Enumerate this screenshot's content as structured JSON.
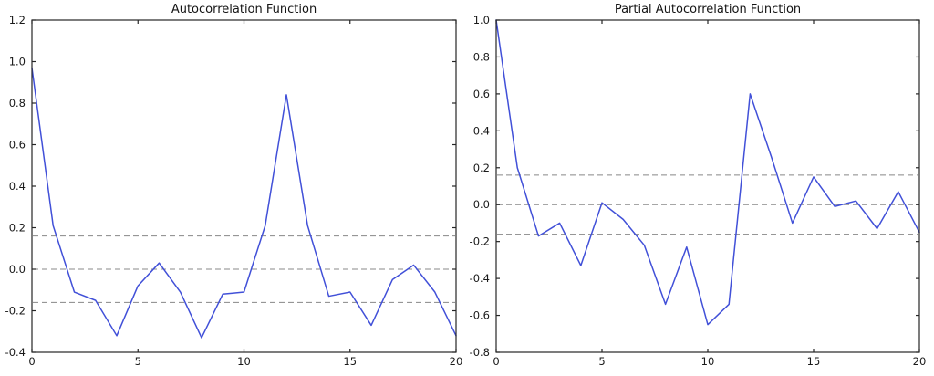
{
  "figure": {
    "background_color": "#ffffff",
    "axis_color": "#262626",
    "tick_label_color": "#1a1a1a"
  },
  "chart_data": [
    {
      "type": "line",
      "title": "Autocorrelation Function",
      "xlabel": "",
      "ylabel": "",
      "x": [
        0,
        1,
        2,
        3,
        4,
        5,
        6,
        7,
        8,
        9,
        10,
        11,
        12,
        13,
        14,
        15,
        16,
        17,
        18,
        19,
        20
      ],
      "values": [
        0.97,
        0.21,
        -0.11,
        -0.15,
        -0.32,
        -0.08,
        0.03,
        -0.11,
        -0.33,
        -0.12,
        -0.11,
        0.21,
        0.84,
        0.21,
        -0.13,
        -0.11,
        -0.27,
        -0.05,
        0.02,
        -0.11,
        -0.32
      ],
      "xlim": [
        0,
        20
      ],
      "ylim": [
        -0.4,
        1.2
      ],
      "xticks": [
        0,
        5,
        10,
        15,
        20
      ],
      "yticks": [
        1.2,
        1.0,
        0.8,
        0.6,
        0.4,
        0.2,
        0.0,
        -0.2,
        -0.4
      ],
      "reference_lines": [
        0.16,
        0.0,
        -0.16
      ],
      "reference_line_style": "dashed",
      "reference_line_color": "#888888",
      "line_color": "#4150d8",
      "grid": "off",
      "legend": "none"
    },
    {
      "type": "line",
      "title": "Partial Autocorrelation Function",
      "xlabel": "",
      "ylabel": "",
      "x": [
        0,
        1,
        2,
        3,
        4,
        5,
        6,
        7,
        8,
        9,
        10,
        11,
        12,
        13,
        14,
        15,
        16,
        17,
        18,
        19,
        20
      ],
      "values": [
        1.0,
        0.2,
        -0.17,
        -0.1,
        -0.33,
        0.01,
        -0.08,
        -0.22,
        -0.54,
        -0.23,
        -0.65,
        -0.54,
        0.6,
        0.26,
        -0.1,
        0.15,
        -0.01,
        0.02,
        -0.13,
        0.07,
        -0.15
      ],
      "xlim": [
        0,
        20
      ],
      "ylim": [
        -0.8,
        1.0
      ],
      "xticks": [
        0,
        5,
        10,
        15,
        20
      ],
      "yticks": [
        1.0,
        0.8,
        0.6,
        0.4,
        0.2,
        0.0,
        -0.2,
        -0.4,
        -0.6,
        -0.8
      ],
      "reference_lines": [
        0.16,
        0.0,
        -0.16
      ],
      "reference_line_style": "dashed",
      "reference_line_color": "#888888",
      "line_color": "#4150d8",
      "grid": "off",
      "legend": "none"
    }
  ]
}
